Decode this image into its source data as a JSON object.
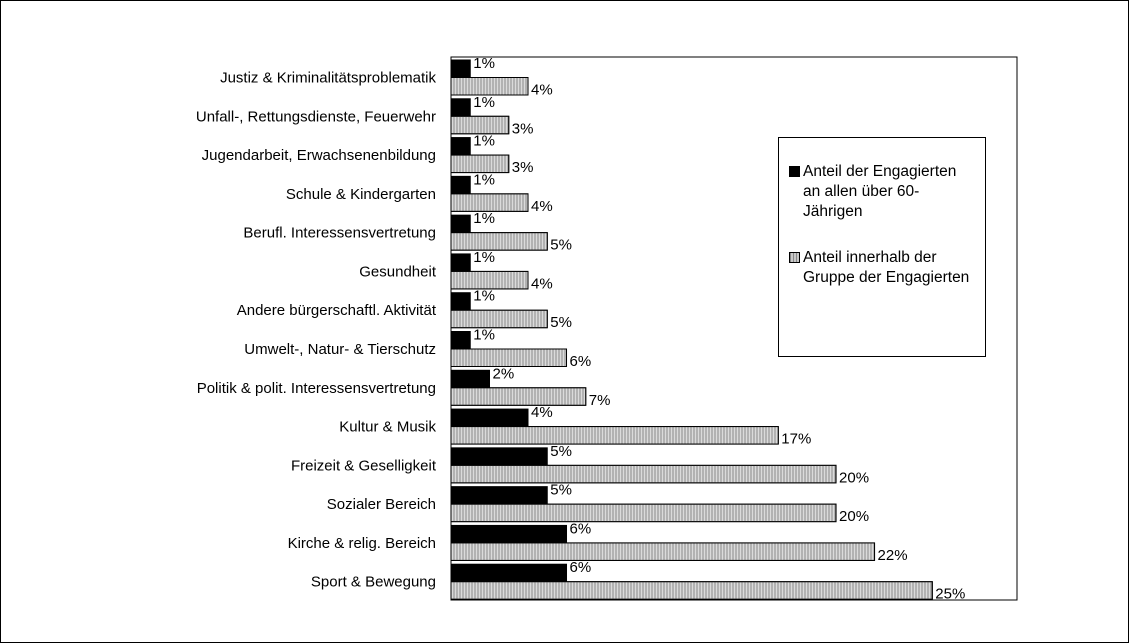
{
  "chart_data": {
    "type": "bar",
    "orientation": "horizontal",
    "categories": [
      "Justiz & Kriminalitätsproblematik",
      "Unfall-, Rettungsdienste, Feuerwehr",
      "Jugendarbeit, Erwachsenenbildung",
      "Schule & Kindergarten",
      "Berufl. Interessensvertretung",
      "Gesundheit",
      "Andere bürgerschaftl. Aktivität",
      "Umwelt-, Natur- & Tierschutz",
      "Politik & polit. Interessensvertretung",
      "Kultur & Musik",
      "Freizeit & Geselligkeit",
      "Sozialer Bereich",
      "Kirche & relig. Bereich",
      "Sport & Bewegung"
    ],
    "series": [
      {
        "name": "Anteil der Engagierten an allen über 60-Jährigen",
        "color": "#000000",
        "values": [
          1,
          1,
          1,
          1,
          1,
          1,
          1,
          1,
          2,
          4,
          5,
          5,
          6,
          6
        ],
        "value_labels": [
          "1%",
          "1%",
          "1%",
          "1%",
          "1%",
          "1%",
          "1%",
          "1%",
          "2%",
          "4%",
          "5%",
          "5%",
          "6%",
          "6%"
        ]
      },
      {
        "name": "Anteil innerhalb der Gruppe der Engagierten",
        "color": "#c8c8c8",
        "values": [
          4,
          3,
          3,
          4,
          5,
          4,
          5,
          6,
          7,
          17,
          20,
          20,
          22,
          25
        ],
        "value_labels": [
          "4%",
          "3%",
          "3%",
          "4%",
          "5%",
          "4%",
          "5%",
          "6%",
          "7%",
          "17%",
          "20%",
          "20%",
          "22%",
          "25%"
        ]
      }
    ],
    "xlim": [
      0,
      29.4
    ],
    "legend": "right"
  }
}
